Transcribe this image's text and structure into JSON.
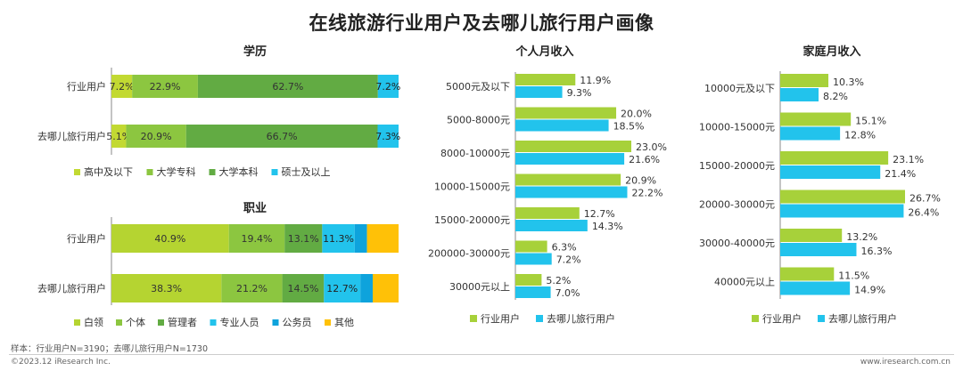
{
  "title": "在线旅游行业用户及去哪儿旅行用户画像",
  "footer": {
    "note": "样本：行业用户N=3190；去哪儿旅行用户N=1730",
    "copyright": "©2023.12 iResearch Inc.",
    "website": "www.iresearch.com.cn"
  },
  "chart_data": [
    {
      "type": "bar",
      "subtype": "stacked-horizontal-percent",
      "title": "学历",
      "categories": [
        "行业用户",
        "去哪儿旅行用户"
      ],
      "series": [
        {
          "name": "高中及以下",
          "values": [
            7.2,
            5.1
          ],
          "labels": [
            "7.2%",
            "5.1%"
          ],
          "color": "#c2d932"
        },
        {
          "name": "大学专科",
          "values": [
            22.9,
            20.9
          ],
          "labels": [
            "22.9%",
            "20.9%"
          ],
          "color": "#8cc640"
        },
        {
          "name": "大学本科",
          "values": [
            62.7,
            66.7
          ],
          "labels": [
            "62.7%",
            "66.7%"
          ],
          "color": "#62ab43"
        },
        {
          "name": "硕士及以上",
          "values": [
            7.2,
            7.3
          ],
          "labels": [
            "7.2%",
            "7.3%"
          ],
          "color": "#22c3ec"
        }
      ],
      "legend": "bottom"
    },
    {
      "type": "bar",
      "subtype": "stacked-horizontal-percent",
      "title": "职业",
      "categories": [
        "行业用户",
        "去哪儿旅行用户"
      ],
      "series": [
        {
          "name": "白领",
          "values": [
            40.9,
            38.3
          ],
          "labels": [
            "40.9%",
            "38.3%"
          ],
          "color": "#b5d431"
        },
        {
          "name": "个体",
          "values": [
            19.4,
            21.2
          ],
          "labels": [
            "19.4%",
            "21.2%"
          ],
          "color": "#8cc640"
        },
        {
          "name": "管理者",
          "values": [
            13.1,
            14.5
          ],
          "labels": [
            "13.1%",
            "14.5%"
          ],
          "color": "#62ab43"
        },
        {
          "name": "专业人员",
          "values": [
            11.3,
            12.7
          ],
          "labels": [
            "11.3%",
            "12.7%"
          ],
          "color": "#22c3ec"
        },
        {
          "name": "公务员",
          "values": [
            4.3,
            4.3
          ],
          "labels": [
            "",
            ""
          ],
          "color": "#0ea3dc"
        },
        {
          "name": "其他",
          "values": [
            11.0,
            9.0
          ],
          "labels": [
            "",
            ""
          ],
          "color": "#ffc107"
        }
      ],
      "legend": "bottom"
    },
    {
      "type": "bar",
      "subtype": "grouped-horizontal",
      "title": "个人月收入",
      "categories": [
        "5000元及以下",
        "5000-8000元",
        "8000-10000元",
        "10000-15000元",
        "15000-20000元",
        "200000-30000元",
        "30000元以上"
      ],
      "series": [
        {
          "name": "行业用户",
          "values": [
            11.9,
            20.0,
            23.0,
            20.9,
            12.7,
            6.3,
            5.2
          ],
          "labels": [
            "11.9%",
            "20.0%",
            "23.0%",
            "20.9%",
            "12.7%",
            "6.3%",
            "5.2%"
          ],
          "color": "#a7d13a"
        },
        {
          "name": "去哪儿旅行用户",
          "values": [
            9.3,
            18.5,
            21.6,
            22.2,
            14.3,
            7.2,
            7.0
          ],
          "labels": [
            "9.3%",
            "18.5%",
            "21.6%",
            "22.2%",
            "14.3%",
            "7.2%",
            "7.0%"
          ],
          "color": "#22c3ec"
        }
      ],
      "legend": "bottom"
    },
    {
      "type": "bar",
      "subtype": "grouped-horizontal",
      "title": "家庭月收入",
      "categories": [
        "10000元及以下",
        "10000-15000元",
        "15000-20000元",
        "20000-30000元",
        "30000-40000元",
        "40000元以上"
      ],
      "series": [
        {
          "name": "行业用户",
          "values": [
            10.3,
            15.1,
            23.1,
            26.7,
            13.2,
            11.5
          ],
          "labels": [
            "10.3%",
            "15.1%",
            "23.1%",
            "26.7%",
            "13.2%",
            "11.5%"
          ],
          "color": "#a7d13a"
        },
        {
          "name": "去哪儿旅行用户",
          "values": [
            8.2,
            12.8,
            21.4,
            26.4,
            16.3,
            14.9
          ],
          "labels": [
            "8.2%",
            "12.8%",
            "21.4%",
            "26.4%",
            "16.3%",
            "14.9%"
          ],
          "color": "#22c3ec"
        }
      ],
      "legend": "bottom"
    }
  ]
}
